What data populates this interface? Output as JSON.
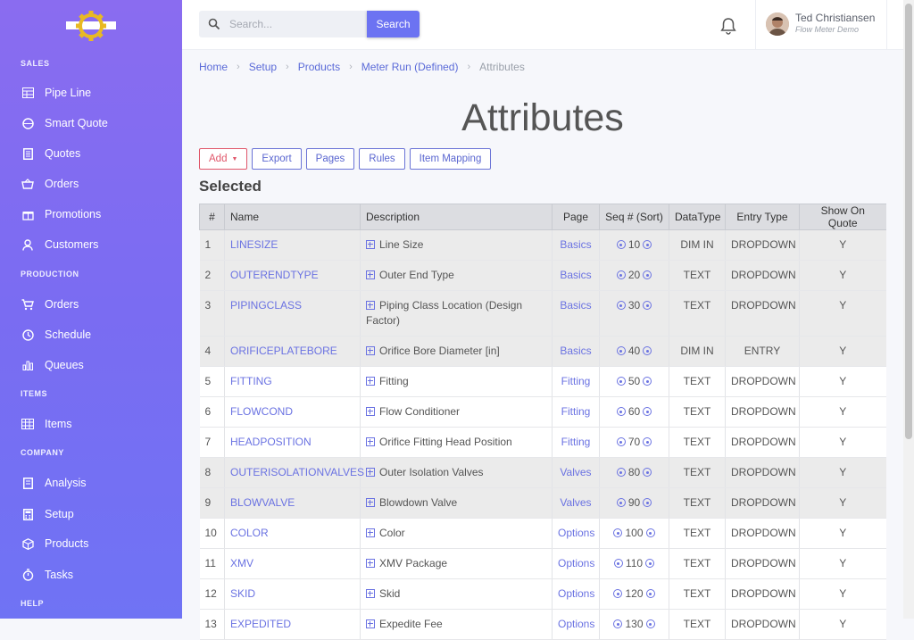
{
  "sidebar": {
    "sections": [
      {
        "label": "SALES"
      },
      {
        "label": "PRODUCTION"
      },
      {
        "label": "ITEMS"
      },
      {
        "label": "COMPANY"
      },
      {
        "label": "HELP"
      }
    ],
    "items": [
      {
        "label": "Pipe Line",
        "icon": "pipeline-icon"
      },
      {
        "label": "Smart Quote",
        "icon": "smart-quote-icon"
      },
      {
        "label": "Quotes",
        "icon": "document-icon"
      },
      {
        "label": "Orders",
        "icon": "basket-icon"
      },
      {
        "label": "Promotions",
        "icon": "gift-icon"
      },
      {
        "label": "Customers",
        "icon": "user-icon"
      },
      {
        "label": "Orders",
        "icon": "cart-icon"
      },
      {
        "label": "Schedule",
        "icon": "clock-icon"
      },
      {
        "label": "Queues",
        "icon": "bar-chart-icon"
      },
      {
        "label": "Items",
        "icon": "warehouse-icon"
      },
      {
        "label": "Analysis",
        "icon": "report-icon"
      },
      {
        "label": "Setup",
        "icon": "calculator-icon"
      },
      {
        "label": "Products",
        "icon": "box-icon"
      },
      {
        "label": "Tasks",
        "icon": "stopwatch-icon"
      }
    ]
  },
  "header": {
    "search_placeholder": "Search...",
    "search_button": "Search",
    "user_name": "Ted Christiansen",
    "user_subtitle": "Flow Meter Demo"
  },
  "breadcrumb": [
    "Home",
    "Setup",
    "Products",
    "Meter Run (Defined)",
    "Attributes"
  ],
  "page_title": "Attributes",
  "toolbar": {
    "add": "Add",
    "export": "Export",
    "pages": "Pages",
    "rules": "Rules",
    "item_mapping": "Item Mapping"
  },
  "section_heading": "Selected",
  "table": {
    "headers": [
      "#",
      "Name",
      "Description",
      "Page",
      "Seq # (Sort)",
      "DataType",
      "Entry Type",
      "Show On Quote"
    ],
    "rows": [
      {
        "num": "1",
        "name": "LINESIZE",
        "desc": "Line Size",
        "page": "Basics",
        "seq": "10",
        "dtype": "DIM IN",
        "entry": "DROPDOWN",
        "show": "Y"
      },
      {
        "num": "2",
        "name": "OUTERENDTYPE",
        "desc": "Outer End Type",
        "page": "Basics",
        "seq": "20",
        "dtype": "TEXT",
        "entry": "DROPDOWN",
        "show": "Y"
      },
      {
        "num": "3",
        "name": "PIPINGCLASS",
        "desc": "Piping Class Location (Design Factor)",
        "page": "Basics",
        "seq": "30",
        "dtype": "TEXT",
        "entry": "DROPDOWN",
        "show": "Y"
      },
      {
        "num": "4",
        "name": "ORIFICEPLATEBORE",
        "desc": "Orifice Bore Diameter [in]",
        "page": "Basics",
        "seq": "40",
        "dtype": "DIM IN",
        "entry": "ENTRY",
        "show": "Y"
      },
      {
        "num": "5",
        "name": "FITTING",
        "desc": "Fitting",
        "page": "Fitting",
        "seq": "50",
        "dtype": "TEXT",
        "entry": "DROPDOWN",
        "show": "Y"
      },
      {
        "num": "6",
        "name": "FLOWCOND",
        "desc": "Flow Conditioner",
        "page": "Fitting",
        "seq": "60",
        "dtype": "TEXT",
        "entry": "DROPDOWN",
        "show": "Y"
      },
      {
        "num": "7",
        "name": "HEADPOSITION",
        "desc": "Orifice Fitting Head Position",
        "page": "Fitting",
        "seq": "70",
        "dtype": "TEXT",
        "entry": "DROPDOWN",
        "show": "Y"
      },
      {
        "num": "8",
        "name": "OUTERISOLATIONVALVES",
        "desc": "Outer Isolation Valves",
        "page": "Valves",
        "seq": "80",
        "dtype": "TEXT",
        "entry": "DROPDOWN",
        "show": "Y"
      },
      {
        "num": "9",
        "name": "BLOWVALVE",
        "desc": "Blowdown Valve",
        "page": "Valves",
        "seq": "90",
        "dtype": "TEXT",
        "entry": "DROPDOWN",
        "show": "Y"
      },
      {
        "num": "10",
        "name": "COLOR",
        "desc": "Color",
        "page": "Options",
        "seq": "100",
        "dtype": "TEXT",
        "entry": "DROPDOWN",
        "show": "Y"
      },
      {
        "num": "11",
        "name": "XMV",
        "desc": "XMV Package",
        "page": "Options",
        "seq": "110",
        "dtype": "TEXT",
        "entry": "DROPDOWN",
        "show": "Y"
      },
      {
        "num": "12",
        "name": "SKID",
        "desc": "Skid",
        "page": "Options",
        "seq": "120",
        "dtype": "TEXT",
        "entry": "DROPDOWN",
        "show": "Y"
      },
      {
        "num": "13",
        "name": "EXPEDITED",
        "desc": "Expedite Fee",
        "page": "Options",
        "seq": "130",
        "dtype": "TEXT",
        "entry": "DROPDOWN",
        "show": "Y"
      }
    ]
  },
  "colors": {
    "sidebar_top": "#8a6cf0",
    "sidebar_bottom": "#6f73f4",
    "accent": "#6c73f2",
    "link": "#6a72e2",
    "add_button": "#e0566a"
  }
}
